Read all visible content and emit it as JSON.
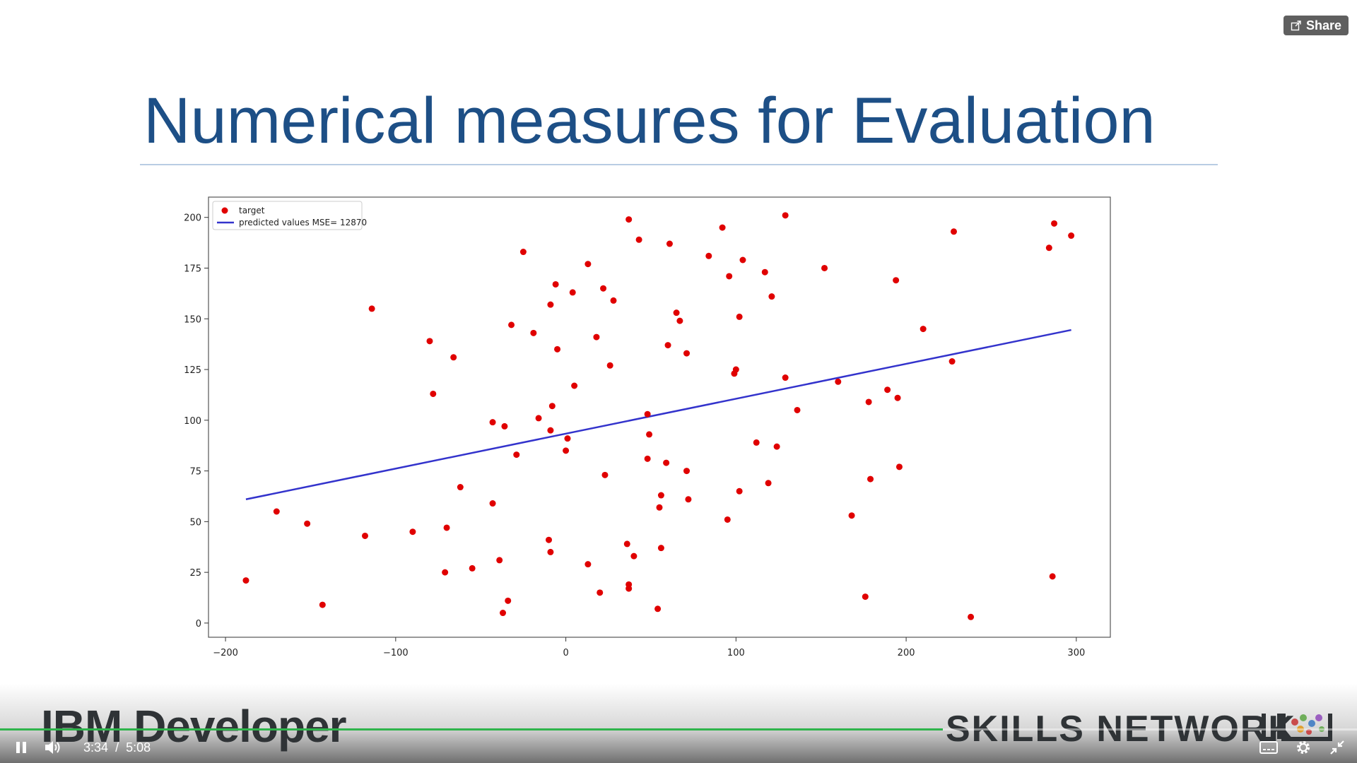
{
  "share": {
    "label": "Share"
  },
  "slide": {
    "title": "Numerical measures for Evaluation"
  },
  "chart_data": {
    "type": "scatter",
    "xlim": [
      -210,
      320
    ],
    "ylim": [
      -7,
      210
    ],
    "x_ticks": [
      -200,
      -100,
      0,
      100,
      200,
      300
    ],
    "x_tick_labels": [
      "−200",
      "−100",
      "0",
      "100",
      "200",
      "300"
    ],
    "y_ticks": [
      0,
      25,
      50,
      75,
      100,
      125,
      150,
      175,
      200
    ],
    "grid": false,
    "legend_position": "top-left",
    "series": [
      {
        "name": "target",
        "kind": "scatter",
        "color": "#e00000",
        "points": [
          [
            -188,
            21
          ],
          [
            -170,
            55
          ],
          [
            -152,
            49
          ],
          [
            -143,
            9
          ],
          [
            -118,
            43
          ],
          [
            -114,
            155
          ],
          [
            -90,
            45
          ],
          [
            -80,
            139
          ],
          [
            -78,
            113
          ],
          [
            -71,
            25
          ],
          [
            -70,
            47
          ],
          [
            -66,
            131
          ],
          [
            -62,
            67
          ],
          [
            -55,
            27
          ],
          [
            -43,
            59
          ],
          [
            -43,
            99
          ],
          [
            -39,
            31
          ],
          [
            -37,
            5
          ],
          [
            -36,
            97
          ],
          [
            -34,
            11
          ],
          [
            -32,
            147
          ],
          [
            -29,
            83
          ],
          [
            -25,
            183
          ],
          [
            -19,
            143
          ],
          [
            -16,
            101
          ],
          [
            -10,
            41
          ],
          [
            -9,
            157
          ],
          [
            -9,
            95
          ],
          [
            -9,
            35
          ],
          [
            -8,
            107
          ],
          [
            -6,
            167
          ],
          [
            -5,
            135
          ],
          [
            0,
            85
          ],
          [
            1,
            91
          ],
          [
            4,
            163
          ],
          [
            5,
            117
          ],
          [
            13,
            29
          ],
          [
            13,
            177
          ],
          [
            18,
            141
          ],
          [
            20,
            15
          ],
          [
            22,
            165
          ],
          [
            23,
            73
          ],
          [
            26,
            127
          ],
          [
            28,
            159
          ],
          [
            36,
            39
          ],
          [
            37,
            19
          ],
          [
            37,
            17
          ],
          [
            37,
            199
          ],
          [
            40,
            33
          ],
          [
            43,
            189
          ],
          [
            48,
            103
          ],
          [
            48,
            81
          ],
          [
            49,
            93
          ],
          [
            54,
            7
          ],
          [
            55,
            57
          ],
          [
            56,
            37
          ],
          [
            56,
            63
          ],
          [
            59,
            79
          ],
          [
            60,
            137
          ],
          [
            61,
            187
          ],
          [
            65,
            153
          ],
          [
            67,
            149
          ],
          [
            71,
            133
          ],
          [
            71,
            75
          ],
          [
            72,
            61
          ],
          [
            84,
            181
          ],
          [
            92,
            195
          ],
          [
            95,
            51
          ],
          [
            96,
            171
          ],
          [
            99,
            123
          ],
          [
            100,
            125
          ],
          [
            102,
            65
          ],
          [
            102,
            151
          ],
          [
            104,
            179
          ],
          [
            112,
            89
          ],
          [
            117,
            173
          ],
          [
            119,
            69
          ],
          [
            121,
            161
          ],
          [
            124,
            87
          ],
          [
            129,
            121
          ],
          [
            129,
            201
          ],
          [
            136,
            105
          ],
          [
            152,
            175
          ],
          [
            160,
            119
          ],
          [
            168,
            53
          ],
          [
            176,
            13
          ],
          [
            178,
            109
          ],
          [
            179,
            71
          ],
          [
            189,
            115
          ],
          [
            194,
            169
          ],
          [
            195,
            111
          ],
          [
            196,
            77
          ],
          [
            210,
            145
          ],
          [
            227,
            129
          ],
          [
            228,
            193
          ],
          [
            238,
            3
          ],
          [
            284,
            185
          ],
          [
            286,
            23
          ],
          [
            287,
            197
          ],
          [
            297,
            191
          ]
        ]
      },
      {
        "name": "predicted values MSE= 12870",
        "kind": "line",
        "color": "#3333cc",
        "x": [
          -188,
          297
        ],
        "y": [
          61,
          144.5
        ]
      }
    ]
  },
  "branding": {
    "left": "IBM Developer",
    "right": "SKILLS NETWORK"
  },
  "player": {
    "current_time": "3:34",
    "separator": "/",
    "duration": "5:08",
    "progress": 0.695,
    "accent_color": "#2fb44b"
  }
}
